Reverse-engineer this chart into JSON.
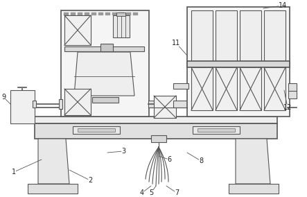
{
  "bg": "#ffffff",
  "lc": "#555555",
  "lw": 0.8,
  "lw2": 1.2
}
